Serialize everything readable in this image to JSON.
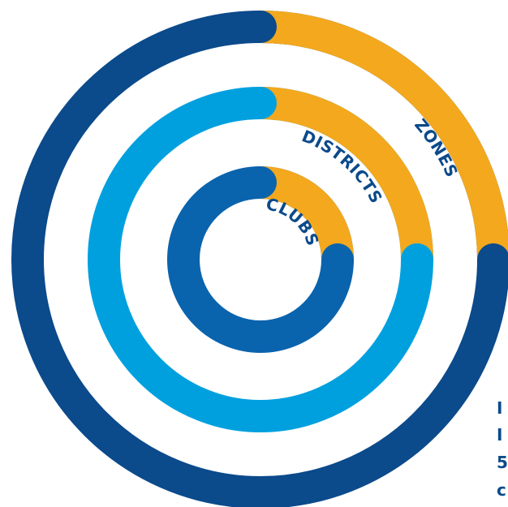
{
  "colors": {
    "outer_ring": "#0b4a8b",
    "middle_ring": "#00a0df",
    "inner_ring": "#0a63ad",
    "segment": "#f3a81e",
    "label_text": "#0b4a8b"
  },
  "rings": {
    "outer": {
      "label": "ZONES"
    },
    "middle": {
      "label": "DISTRICTS"
    },
    "inner": {
      "label": "CLUBS"
    }
  },
  "edge_fragment": {
    "lines": [
      "I",
      "I",
      "5",
      "c"
    ]
  }
}
